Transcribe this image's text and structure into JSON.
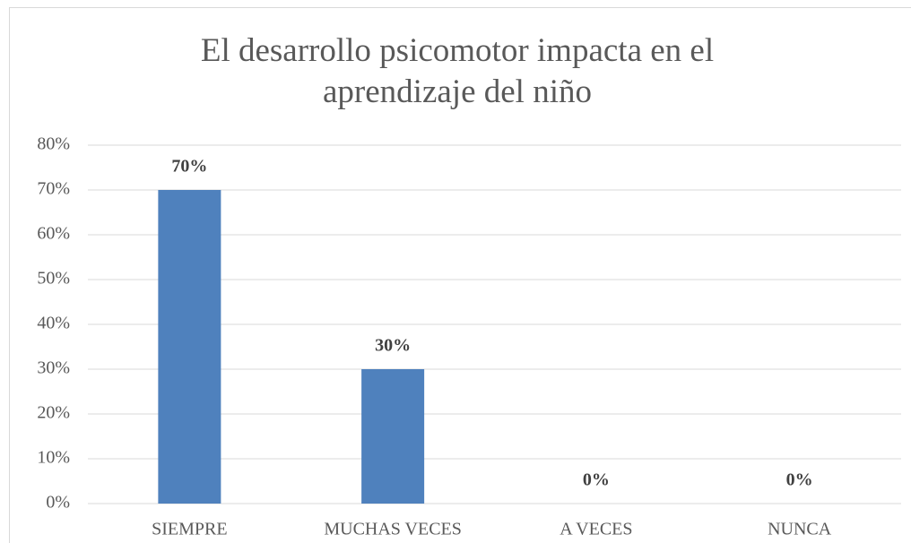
{
  "chart_data": {
    "type": "bar",
    "title": "El desarrollo psicomotor impacta en el aprendizaje del niño",
    "categories": [
      "SIEMPRE",
      "MUCHAS VECES",
      "A VECES",
      "NUNCA"
    ],
    "values": [
      70,
      30,
      0,
      0
    ],
    "value_labels": [
      "70%",
      "30%",
      "0%",
      "0%"
    ],
    "color": "#4f81bd",
    "ylim": [
      0,
      80
    ],
    "yticks": [
      {
        "value": 0,
        "label": "0%"
      },
      {
        "value": 10,
        "label": "10%"
      },
      {
        "value": 20,
        "label": "20%"
      },
      {
        "value": 30,
        "label": "30%"
      },
      {
        "value": 40,
        "label": "40%"
      },
      {
        "value": 50,
        "label": "50%"
      },
      {
        "value": 60,
        "label": "60%"
      },
      {
        "value": 70,
        "label": "70%"
      },
      {
        "value": 80,
        "label": "80%"
      }
    ],
    "grid": true
  }
}
